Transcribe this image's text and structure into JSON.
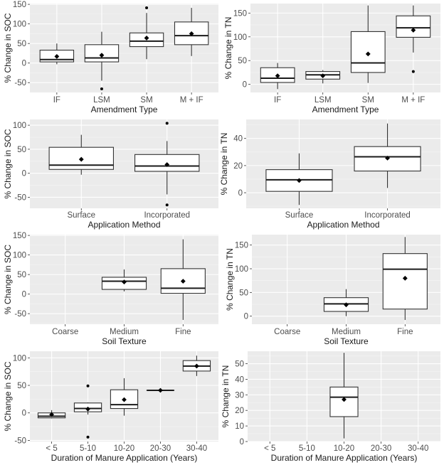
{
  "figure": {
    "description": "Eight-panel box plot figure of % change in SOC and TN by manure amendment factors"
  },
  "chart_data": [
    {
      "id": "soc-amendment",
      "type": "boxplot",
      "xlabel": "Amendment Type",
      "ylabel": "% Change in SOC",
      "ylim": [
        -75,
        152
      ],
      "yticks": [
        -50,
        0,
        50,
        100,
        150
      ],
      "grid": true,
      "categories": [
        "IF",
        "LSM",
        "SM",
        "M + IF"
      ],
      "boxes": [
        {
          "category": "IF",
          "whisker_low": -3,
          "q1": 3,
          "median": 9,
          "q3": 33,
          "whisker_high": 50,
          "mean": 17,
          "outliers": []
        },
        {
          "category": "LSM",
          "whisker_low": -45,
          "q1": 3,
          "median": 13,
          "q3": 47,
          "whisker_high": 80,
          "mean": 20,
          "outliers": [
            -66
          ]
        },
        {
          "category": "SM",
          "whisker_low": 10,
          "q1": 42,
          "median": 56,
          "q3": 77,
          "whisker_high": 128,
          "mean": 64,
          "outliers": [
            141
          ]
        },
        {
          "category": "M + IF",
          "whisker_low": 18,
          "q1": 47,
          "median": 70,
          "q3": 105,
          "whisker_high": 141,
          "mean": 75,
          "outliers": []
        }
      ]
    },
    {
      "id": "tn-amendment",
      "type": "boxplot",
      "xlabel": "Amendment Type",
      "ylabel": "% Change in TN",
      "ylim": [
        -17,
        170
      ],
      "yticks": [
        0,
        50,
        100,
        150
      ],
      "grid": true,
      "categories": [
        "IF",
        "LSM",
        "SM",
        "M + IF"
      ],
      "boxes": [
        {
          "category": "IF",
          "whisker_low": -10,
          "q1": 4,
          "median": 13,
          "q3": 35,
          "whisker_high": 45,
          "mean": 18,
          "outliers": []
        },
        {
          "category": "LSM",
          "whisker_low": 2,
          "q1": 11,
          "median": 20,
          "q3": 27,
          "whisker_high": 30,
          "mean": 18,
          "outliers": []
        },
        {
          "category": "SM",
          "whisker_low": 3,
          "q1": 25,
          "median": 45,
          "q3": 111,
          "whisker_high": 166,
          "mean": 64,
          "outliers": []
        },
        {
          "category": "M + IF",
          "whisker_low": 67,
          "q1": 99,
          "median": 119,
          "q3": 144,
          "whisker_high": 166,
          "mean": 114,
          "outliers": [
            27
          ]
        }
      ]
    },
    {
      "id": "soc-application",
      "type": "boxplot",
      "xlabel": "Application Method",
      "ylabel": "% Change in SOC",
      "ylim": [
        -73,
        112
      ],
      "yticks": [
        -50,
        0,
        50,
        100
      ],
      "grid": true,
      "categories": [
        "Surface",
        "Incorporated"
      ],
      "boxes": [
        {
          "category": "Surface",
          "whisker_low": -3,
          "q1": 8,
          "median": 17,
          "q3": 54,
          "whisker_high": 80,
          "mean": 29,
          "outliers": []
        },
        {
          "category": "Incorporated",
          "whisker_low": -44,
          "q1": 4,
          "median": 15,
          "q3": 39,
          "whisker_high": 67,
          "mean": 18,
          "outliers": [
            104,
            -66
          ]
        }
      ]
    },
    {
      "id": "tn-application",
      "type": "boxplot",
      "xlabel": "Application Method",
      "ylabel": "% Change in TN",
      "ylim": [
        -11.5,
        54
      ],
      "yticks": [
        0,
        20,
        40
      ],
      "grid": true,
      "categories": [
        "Surface",
        "Incorporated"
      ],
      "boxes": [
        {
          "category": "Surface",
          "whisker_low": -9,
          "q1": 1,
          "median": 9.5,
          "q3": 17,
          "whisker_high": 29,
          "mean": 9,
          "outliers": []
        },
        {
          "category": "Incorporated",
          "whisker_low": 3.5,
          "q1": 16,
          "median": 26.5,
          "q3": 34,
          "whisker_high": 51,
          "mean": 25.5,
          "outliers": []
        }
      ]
    },
    {
      "id": "soc-texture",
      "type": "boxplot",
      "xlabel": "Soil Texture",
      "ylabel": "% Change in SOC",
      "ylim": [
        -77,
        152
      ],
      "yticks": [
        -50,
        0,
        50,
        100,
        150
      ],
      "grid": true,
      "categories": [
        "Coarse",
        "Medium",
        "Fine"
      ],
      "boxes": [
        {
          "category": "Medium",
          "whisker_low": 7,
          "q1": 12,
          "median": 33,
          "q3": 43,
          "whisker_high": 63,
          "mean": 31,
          "outliers": []
        },
        {
          "category": "Fine",
          "whisker_low": -66,
          "q1": 2,
          "median": 15,
          "q3": 65,
          "whisker_high": 140,
          "mean": 33,
          "outliers": []
        }
      ]
    },
    {
      "id": "tn-texture",
      "type": "boxplot",
      "xlabel": "Soil Texture",
      "ylabel": "% Change in TN",
      "ylim": [
        -17,
        172
      ],
      "yticks": [
        0,
        50,
        100,
        150
      ],
      "grid": true,
      "categories": [
        "Coarse",
        "Medium",
        "Fine"
      ],
      "boxes": [
        {
          "category": "Medium",
          "whisker_low": 0,
          "q1": 10,
          "median": 26,
          "q3": 39,
          "whisker_high": 57,
          "mean": 24,
          "outliers": []
        },
        {
          "category": "Fine",
          "whisker_low": -8,
          "q1": 15,
          "median": 99,
          "q3": 132,
          "whisker_high": 167,
          "mean": 80,
          "outliers": []
        }
      ]
    },
    {
      "id": "soc-duration",
      "type": "boxplot",
      "xlabel": "Duration of Manure Application (Years)",
      "ylabel": "% Change in SOC",
      "ylim": [
        -52,
        112
      ],
      "yticks": [
        -50,
        0,
        50,
        100
      ],
      "grid": true,
      "categories": [
        "< 5",
        "5-10",
        "10-20",
        "20-30",
        "30-40"
      ],
      "boxes": [
        {
          "category": "< 5",
          "whisker_low": -10,
          "q1": -9,
          "median": -6,
          "q3": 0,
          "whisker_high": 5,
          "mean": -3,
          "outliers": []
        },
        {
          "category": "5-10",
          "whisker_low": -3,
          "q1": 2,
          "median": 8,
          "q3": 18,
          "whisker_high": 19,
          "mean": 7,
          "outliers": [
            49,
            -44
          ]
        },
        {
          "category": "10-20",
          "whisker_low": -5,
          "q1": 8,
          "median": 15,
          "q3": 42,
          "whisker_high": 63,
          "mean": 24,
          "outliers": []
        },
        {
          "category": "20-30",
          "whisker_low": 41,
          "q1": 41,
          "median": 41,
          "q3": 41,
          "whisker_high": 41,
          "mean": 41,
          "outliers": []
        },
        {
          "category": "30-40",
          "whisker_low": 67,
          "q1": 76,
          "median": 85,
          "q3": 95,
          "whisker_high": 104,
          "mean": 85,
          "outliers": []
        }
      ]
    },
    {
      "id": "tn-duration",
      "type": "boxplot",
      "xlabel": "Duration of Manure Application (Years)",
      "ylabel": "% Change in TN",
      "ylim": [
        0,
        58
      ],
      "yticks": [
        0,
        10,
        20,
        30,
        40,
        50
      ],
      "grid": true,
      "categories": [
        "< 5",
        "5-10",
        "10-20",
        "20-30",
        "30-40"
      ],
      "boxes": [
        {
          "category": "10-20",
          "whisker_low": 2,
          "q1": 16,
          "median": 28.5,
          "q3": 35,
          "whisker_high": 57,
          "mean": 27,
          "outliers": []
        }
      ]
    }
  ],
  "colors": {
    "panel_bg": "#ebebeb",
    "grid_major": "#ffffff",
    "box_fill": "#ffffff",
    "box_stroke": "#333333",
    "point": "#000000",
    "tick_text": "#4d4d4d",
    "title_text": "#1a1a1a"
  }
}
